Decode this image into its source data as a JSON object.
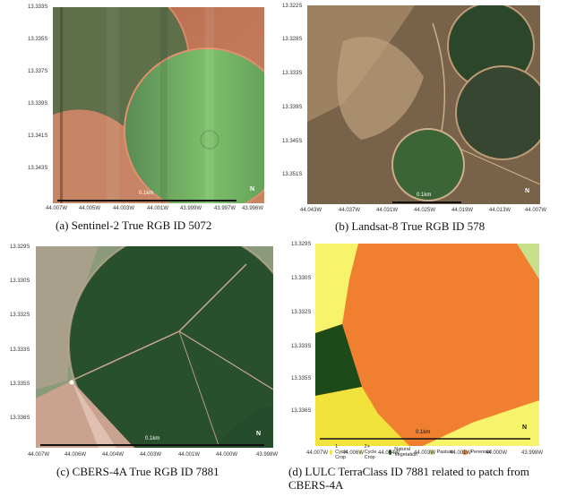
{
  "panels": [
    {
      "caption": "(a) Sentinel-2 True RGB ID 5072",
      "yticks": [
        "13.333S",
        "13.335S",
        "13.337S",
        "13.339S",
        "13.341S",
        "13.343S"
      ],
      "xticks": [
        "44.007W",
        "44.005W",
        "44.003W",
        "44.001W",
        "43.999W",
        "43.997W",
        "43.996W"
      ],
      "scale_label": "0.1km",
      "north": "N"
    },
    {
      "caption": "(b) Landsat-8 True RGB ID 578",
      "yticks": [
        "13.322S",
        "13.328S",
        "13.333S",
        "13.339S",
        "13.345S",
        "13.351S"
      ],
      "xticks": [
        "44.043W",
        "44.037W",
        "44.031W",
        "44.025W",
        "44.019W",
        "44.013W",
        "44.007W"
      ],
      "scale_label": "0.1km",
      "north": "N"
    },
    {
      "caption": "(c) CBERS-4A True RGB ID 7881",
      "yticks": [
        "13.329S",
        "13.330S",
        "13.332S",
        "13.333S",
        "13.335S",
        "13.336S"
      ],
      "xticks": [
        "44.007W",
        "44.006W",
        "44.004W",
        "44.003W",
        "44.001W",
        "44.000W",
        "43.998W"
      ],
      "scale_label": "0.1km",
      "north": "N"
    },
    {
      "caption": "(d) LULC TerraClass ID 7881 related to patch from CBERS-4A",
      "yticks": [
        "13.329S",
        "13.330S",
        "13.332S",
        "13.333S",
        "13.335S",
        "13.336S"
      ],
      "xticks": [
        "44.007W",
        "44.006W",
        "44.004W",
        "44.003W",
        "44.001W",
        "44.000W",
        "43.998W"
      ],
      "scale_label": "0.1km",
      "north": "N",
      "legend": [
        {
          "label": "1 Cycle Crop",
          "color": "#f2e23c"
        },
        {
          "label": "2+ Cycle Crop",
          "color": "#f7f36a"
        },
        {
          "label": "Natural Vegetation",
          "color": "#1e4a1a"
        },
        {
          "label": "Pasture",
          "color": "#c8e08a"
        },
        {
          "label": "Perennial",
          "color": "#f08030"
        }
      ]
    }
  ]
}
